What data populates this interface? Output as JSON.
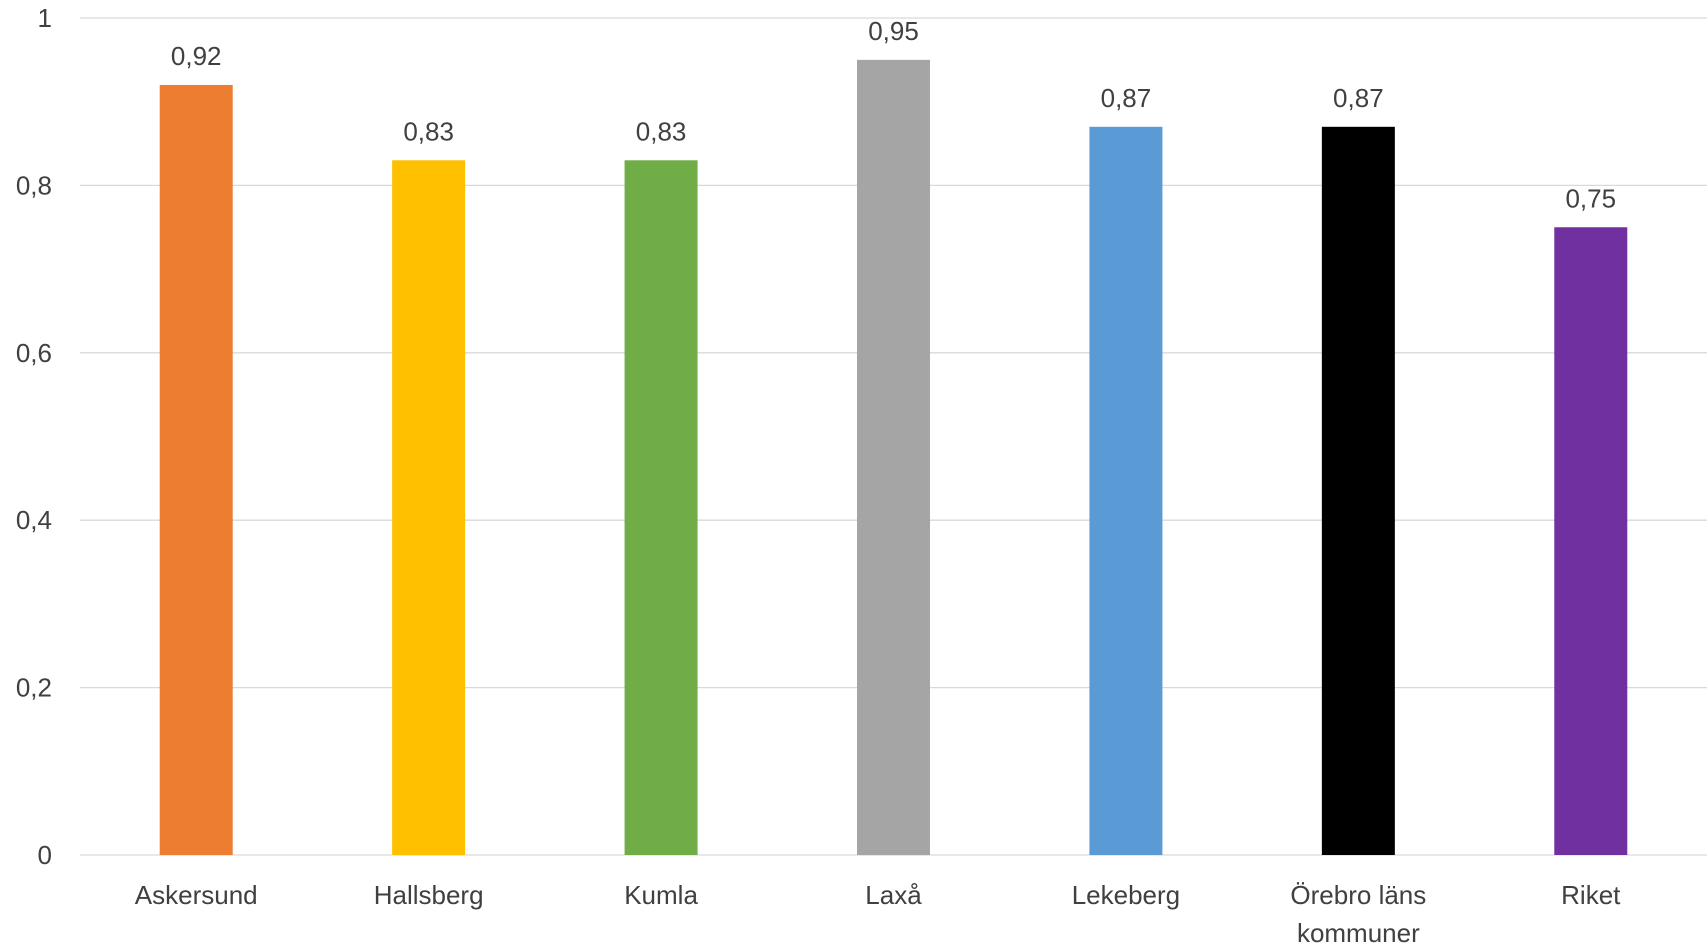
{
  "chart_data": {
    "type": "bar",
    "title": "",
    "xlabel": "",
    "ylabel": "",
    "categories": [
      "Askersund",
      "Hallsberg",
      "Kumla",
      "Laxå",
      "Lekeberg",
      "Örebro läns kommuner",
      "Riket"
    ],
    "category_lines": [
      [
        "Askersund"
      ],
      [
        "Hallsberg"
      ],
      [
        "Kumla"
      ],
      [
        "Laxå"
      ],
      [
        "Lekeberg"
      ],
      [
        "Örebro läns",
        "kommuner"
      ],
      [
        "Riket"
      ]
    ],
    "values": [
      0.92,
      0.83,
      0.83,
      0.95,
      0.87,
      0.87,
      0.75
    ],
    "value_labels": [
      "0,92",
      "0,83",
      "0,83",
      "0,95",
      "0,87",
      "0,87",
      "0,75"
    ],
    "colors": [
      "#ED7D31",
      "#FFC000",
      "#70AD47",
      "#A5A5A5",
      "#5B9BD5",
      "#000000",
      "#7030A0"
    ],
    "ylim": [
      0,
      1
    ],
    "yticks": [
      0,
      0.2,
      0.4,
      0.6,
      0.8,
      1
    ],
    "ytick_labels": [
      "0",
      "0,2",
      "0,4",
      "0,6",
      "0,8",
      "1"
    ],
    "grid": true,
    "legend": "none",
    "gridline_color": "#D9D9D9",
    "text_color": "#404040"
  }
}
